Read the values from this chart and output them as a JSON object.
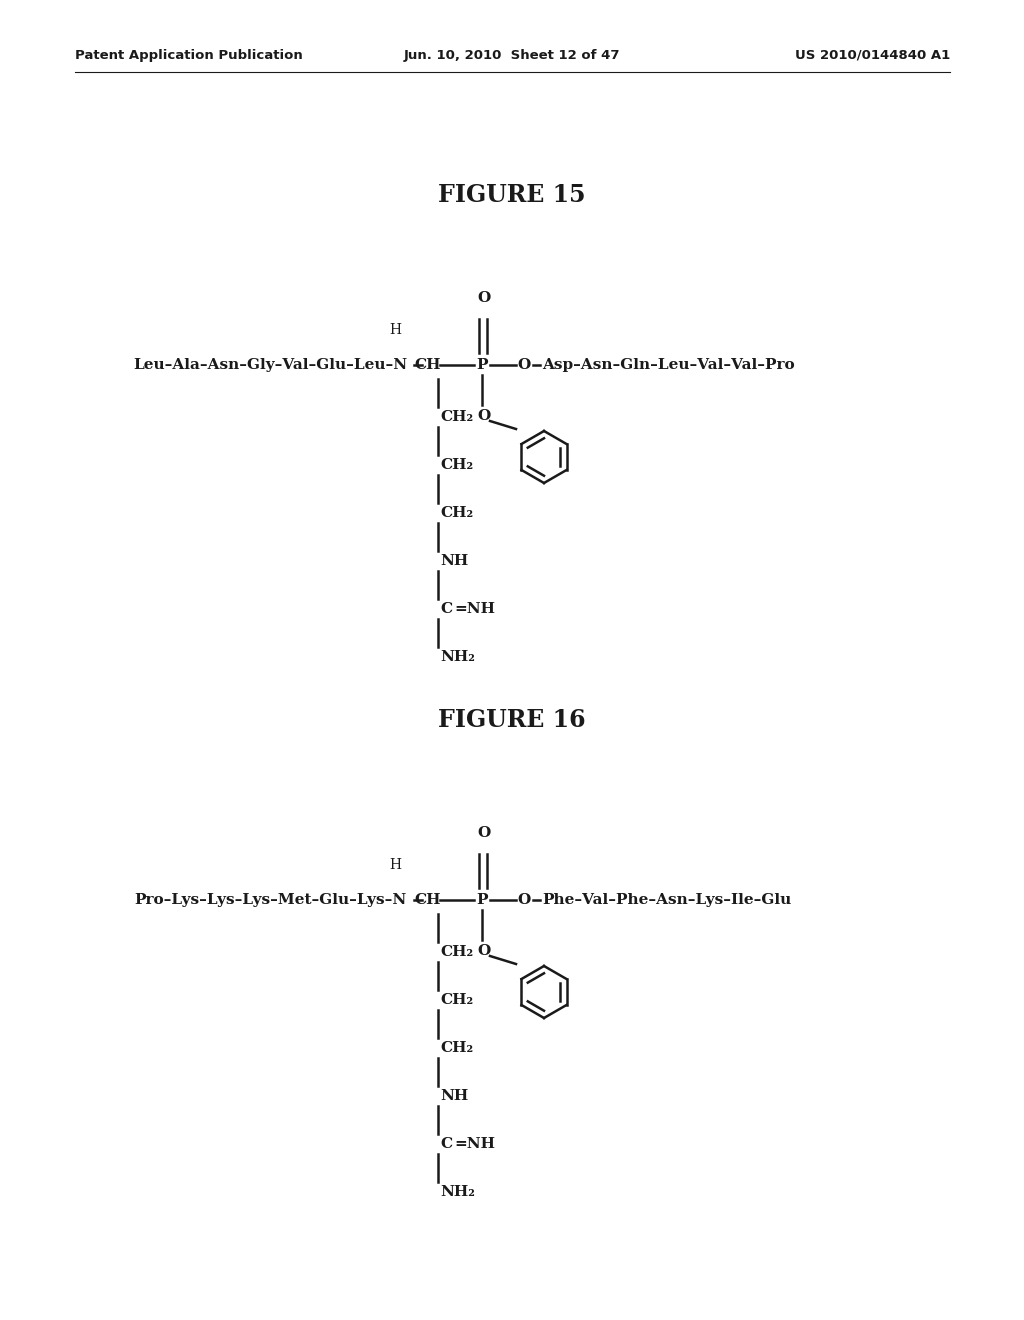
{
  "header_left": "Patent Application Publication",
  "header_mid": "Jun. 10, 2010  Sheet 12 of 47",
  "header_right": "US 2010/0144840 A1",
  "fig15_title": "FIGURE 15",
  "fig16_title": "FIGURE 16",
  "fig15": {
    "left_chain": "Leu–Ala–Asn–Gly–Val–Glu–Leu–N",
    "right_chain": "Asp–Asn–Gln–Leu–Val–Val–Pro",
    "side_chain": [
      "CH₂",
      "CH₂",
      "CH₂",
      "NH",
      "C=NH",
      "NH₂"
    ]
  },
  "fig16": {
    "left_chain": "Pro–Lys–Lys–Lys–Met–Glu–Lys–N",
    "right_chain": "Phe–Val–Phe–Asn–Lys–Ile–Glu",
    "side_chain": [
      "CH₂",
      "CH₂",
      "CH₂",
      "NH",
      "C=NH",
      "NH₂"
    ]
  },
  "background_color": "#ffffff",
  "text_color": "#1a1a1a",
  "font_size_header": 9.5,
  "font_size_title": 17,
  "font_size_chem": 11
}
